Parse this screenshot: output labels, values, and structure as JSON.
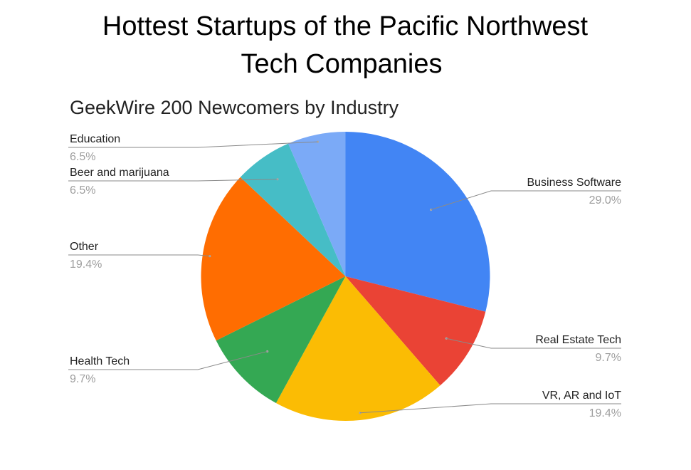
{
  "chart_data": {
    "type": "pie",
    "title_lines": [
      "Hottest Startups of the Pacific Northwest",
      "Tech Companies"
    ],
    "subtitle": "GeekWire 200 Newcomers by Industry",
    "slices": [
      {
        "label": "Business Software",
        "value": 29.0,
        "pct_label": "29.0%",
        "color": "#4285F4"
      },
      {
        "label": "Real Estate Tech",
        "value": 9.7,
        "pct_label": "9.7%",
        "color": "#EA4335"
      },
      {
        "label": "VR, AR and IoT",
        "value": 19.4,
        "pct_label": "19.4%",
        "color": "#FBBC04"
      },
      {
        "label": "Health Tech",
        "value": 9.7,
        "pct_label": "9.7%",
        "color": "#34A853"
      },
      {
        "label": "Other",
        "value": 19.4,
        "pct_label": "19.4%",
        "color": "#FF6D01"
      },
      {
        "label": "Beer and marijuana",
        "value": 6.5,
        "pct_label": "6.5%",
        "color": "#46BDC6"
      },
      {
        "label": "Education",
        "value": 6.5,
        "pct_label": "6.5%",
        "color": "#7BAAF7"
      }
    ],
    "start_angle": "12 o'clock",
    "direction": "clockwise",
    "legend": "none (labels beside slices)"
  }
}
